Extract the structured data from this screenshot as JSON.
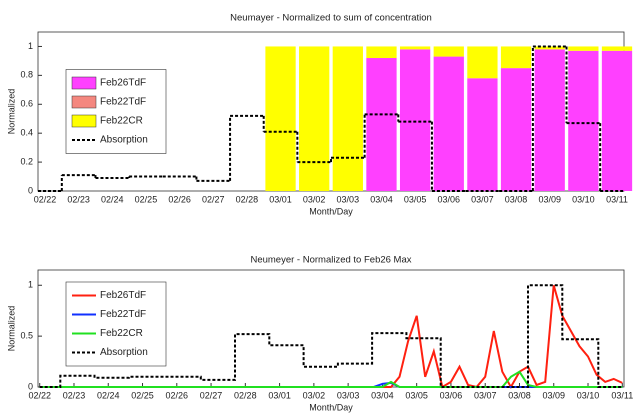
{
  "chart_data": [
    {
      "type": "bar",
      "stacked": true,
      "title": "Neumayer - Normalized to sum of concentration",
      "xlabel": "Month/Day",
      "ylabel": "Normalized",
      "categories": [
        "02/22",
        "02/23",
        "02/24",
        "02/25",
        "02/26",
        "02/27",
        "02/28",
        "03/01",
        "03/02",
        "03/03",
        "03/04",
        "03/05",
        "03/06",
        "03/07",
        "03/08",
        "03/09",
        "03/10",
        "03/11"
      ],
      "series": [
        {
          "name": "Feb26TdF",
          "color": "#ff40ff",
          "values": [
            null,
            null,
            null,
            null,
            null,
            null,
            null,
            0,
            0,
            0,
            0.92,
            0.98,
            0.93,
            0.78,
            0.85,
            0.98,
            0.97,
            0.97
          ]
        },
        {
          "name": "Feb22TdF",
          "color": "#f4877f",
          "values": [
            null,
            null,
            null,
            null,
            null,
            null,
            null,
            0,
            0,
            0,
            0,
            0,
            0,
            0,
            0,
            0,
            0,
            0
          ]
        },
        {
          "name": "Feb22CR",
          "color": "#ffff00",
          "values": [
            null,
            null,
            null,
            null,
            null,
            null,
            null,
            1,
            1,
            1,
            0.08,
            0.02,
            0.07,
            0.22,
            0.15,
            0.02,
            0.03,
            0.03
          ]
        },
        {
          "name": "Absorption",
          "type": "step",
          "dashed": true,
          "color": "#000000",
          "values": [
            0,
            0.11,
            0.09,
            0.1,
            0.1,
            0.07,
            0.52,
            0.41,
            0.2,
            0.23,
            0.53,
            0.48,
            0,
            0,
            0,
            1,
            0.47,
            0
          ]
        }
      ],
      "ylim": [
        0,
        1.1
      ],
      "yticks": [
        0,
        0.2,
        0.4,
        0.6,
        0.8,
        1
      ],
      "grid": false,
      "legend": "center left"
    },
    {
      "type": "line",
      "title": "Neumeyer - Normalized to Feb26 Max",
      "xlabel": "Month/Day",
      "ylabel": "Normalized",
      "x": [
        22,
        30.5,
        30.75,
        31,
        31.25,
        31.5,
        31.75,
        32,
        32.25,
        32.5,
        32.75,
        33,
        33.25,
        33.5,
        33.75,
        34,
        34.25,
        34.5,
        34.75,
        35,
        35.25,
        35.5,
        35.75,
        36,
        36.25,
        36.5,
        36.75,
        37,
        37.25,
        37.5,
        37.75,
        38,
        38.25,
        38.5,
        38.75,
        39
      ],
      "series": [
        {
          "name": "Feb26TdF",
          "color": "#ff2010",
          "values": [
            0,
            0,
            0,
            0,
            0,
            0,
            0,
            0,
            0,
            0.1,
            0.45,
            0.7,
            0.1,
            0.35,
            0,
            0.05,
            0.2,
            0.02,
            0,
            0.1,
            0.55,
            0.15,
            0,
            0.15,
            0.2,
            0.02,
            0.05,
            1,
            0.7,
            0.55,
            0.4,
            0.3,
            0.12,
            0.05,
            0.08,
            0.04
          ]
        },
        {
          "name": "Feb22TdF",
          "color": "#1030ff",
          "values": [
            0,
            0,
            0,
            0,
            0,
            0,
            0,
            0.03,
            0.04,
            0,
            0,
            0,
            0,
            0,
            0,
            0,
            0,
            0,
            0,
            0,
            0,
            0,
            0,
            0,
            0,
            0,
            0,
            0,
            0,
            0,
            0,
            0,
            0,
            0,
            0,
            0
          ]
        },
        {
          "name": "Feb22CR",
          "color": "#20e020",
          "values": [
            0,
            0,
            0,
            0,
            0,
            0,
            0,
            0,
            0.05,
            0,
            0,
            0,
            0,
            0,
            0,
            0,
            0,
            0,
            0,
            0,
            0,
            0,
            0.1,
            0.15,
            0.02,
            0,
            0,
            0,
            0,
            0,
            0,
            0,
            0,
            0,
            0,
            0
          ]
        },
        {
          "name": "Absorption",
          "dashed": true,
          "color": "#000000",
          "x": [
            22,
            22.6,
            22.6,
            23.6,
            23.6,
            24.6,
            24.6,
            26.7,
            26.7,
            27.7,
            27.7,
            28.7,
            28.7,
            29.7,
            29.7,
            30.7,
            30.7,
            31.7,
            31.7,
            32.7,
            32.7,
            33.7,
            33.7,
            36.25,
            36.25,
            37.25,
            37.25,
            38.3,
            38.3,
            39
          ],
          "values": [
            0,
            0,
            0.11,
            0.11,
            0.09,
            0.09,
            0.1,
            0.1,
            0.07,
            0.07,
            0.52,
            0.52,
            0.41,
            0.41,
            0.2,
            0.2,
            0.23,
            0.23,
            0.53,
            0.53,
            0.48,
            0.48,
            0,
            0,
            1,
            1,
            0.47,
            0.47,
            0,
            0
          ]
        }
      ],
      "xlim": [
        21.95,
        39.05
      ],
      "xticks": [
        {
          "value": 22,
          "label": "02/22"
        },
        {
          "value": 23,
          "label": "02/23"
        },
        {
          "value": 24,
          "label": "02/24"
        },
        {
          "value": 25,
          "label": "02/25"
        },
        {
          "value": 26,
          "label": "02/26"
        },
        {
          "value": 27,
          "label": "02/27"
        },
        {
          "value": 28,
          "label": "02/28"
        },
        {
          "value": 29,
          "label": "03/01"
        },
        {
          "value": 30,
          "label": "03/02"
        },
        {
          "value": 31,
          "label": "03/03"
        },
        {
          "value": 32,
          "label": "03/04"
        },
        {
          "value": 33,
          "label": "03/05"
        },
        {
          "value": 34,
          "label": "03/06"
        },
        {
          "value": 35,
          "label": "03/07"
        },
        {
          "value": 36,
          "label": "03/08"
        },
        {
          "value": 37,
          "label": "03/09"
        },
        {
          "value": 38,
          "label": "03/10"
        },
        {
          "value": 39,
          "label": "03/11"
        }
      ],
      "ylim": [
        0,
        1.15
      ],
      "yticks": [
        0,
        0.5,
        1
      ],
      "grid": false,
      "legend": "upper left"
    }
  ]
}
